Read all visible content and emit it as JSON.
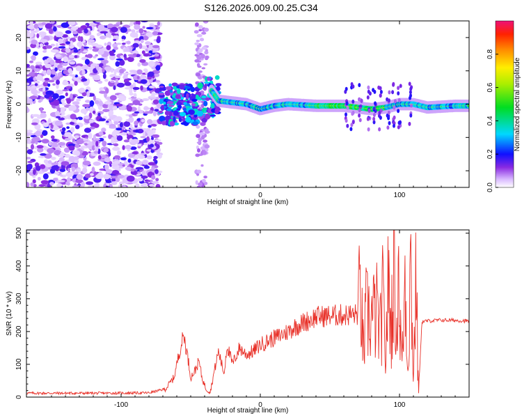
{
  "title": "S126.2026.009.00.25.C34",
  "chart_data": [
    {
      "type": "heatmap",
      "xlabel": "Height of straight line (km)",
      "ylabel": "Frequency (Hz)",
      "xlim": [
        -168,
        150
      ],
      "ylim": [
        -25,
        25
      ],
      "xticks": [
        -100,
        0,
        100
      ],
      "yticks": [
        -20,
        -10,
        0,
        10,
        20
      ],
      "colorbar": {
        "label": "Normalized spectral amplitude",
        "range": [
          0,
          1
        ],
        "ticks": [
          "0.0",
          "0.2",
          "0.4",
          "0.6",
          "0.8"
        ]
      },
      "ridge": {
        "x": [
          -35,
          -30,
          -20,
          -10,
          0,
          10,
          20,
          40,
          60,
          70,
          80,
          90,
          100,
          110,
          120,
          140,
          150
        ],
        "y": [
          4,
          1,
          0.5,
          0,
          -1.5,
          -0.5,
          0,
          -0.5,
          -0.5,
          -1,
          -1.5,
          -1,
          0,
          0,
          -1,
          -0.5,
          -0.5
        ]
      }
    },
    {
      "type": "line",
      "xlabel": "Height of straight line (km)",
      "ylabel": "SNR (10 * v/v)",
      "xlim": [
        -168,
        150
      ],
      "ylim": [
        0,
        510
      ],
      "xticks": [
        -100,
        0,
        100
      ],
      "yticks": [
        0,
        100,
        200,
        300,
        400,
        500
      ],
      "color": "#e83028",
      "series": [
        {
          "name": "SNR",
          "x": [
            -168,
            -140,
            -110,
            -80,
            -68,
            -62,
            -58,
            -55,
            -52,
            -50,
            -47,
            -44,
            -42,
            -39,
            -36,
            -33,
            -30,
            -26,
            -24,
            -20,
            -15,
            -10,
            -5,
            0,
            5,
            10,
            15,
            20,
            25,
            30,
            40,
            50,
            60,
            70,
            72,
            74,
            76,
            80,
            84,
            86,
            88,
            90,
            92,
            94,
            96,
            97,
            98,
            99,
            100,
            102,
            104,
            106,
            108,
            110,
            112,
            113,
            114,
            116,
            120,
            130,
            140,
            150
          ],
          "y": [
            12,
            12,
            12,
            13,
            25,
            60,
            140,
            190,
            120,
            60,
            80,
            110,
            60,
            25,
            15,
            80,
            140,
            70,
            160,
            100,
            150,
            130,
            140,
            160,
            170,
            180,
            190,
            200,
            215,
            225,
            245,
            248,
            250,
            252,
            330,
            130,
            250,
            240,
            260,
            180,
            300,
            120,
            350,
            200,
            420,
            300,
            150,
            480,
            250,
            100,
            380,
            80,
            420,
            60,
            380,
            120,
            20,
            230,
            232,
            235,
            234,
            232
          ]
        }
      ]
    }
  ]
}
